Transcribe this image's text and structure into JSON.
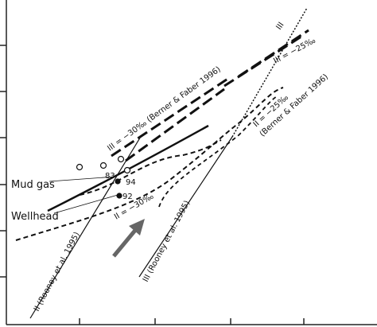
{
  "labels": {
    "iii_top": "III",
    "iii_minus25": "III = −25‰",
    "iii_minus30": "III = −30‰ (Berner & Faber 1996)",
    "ii_minus25_line1": "II = −25‰",
    "ii_minus25_line2": "(Berner & Faber 1996)",
    "mud_gas": "Mud gas",
    "wellhead": "Wellhead",
    "ii_minus30": "II = −30‰",
    "ii_rooney": "II (Rooney et al. 1995)",
    "iii_rooney": "III (Rooney et al. 1995)"
  },
  "points": {
    "p83": "83",
    "p94": "94",
    "p92": "92"
  }
}
